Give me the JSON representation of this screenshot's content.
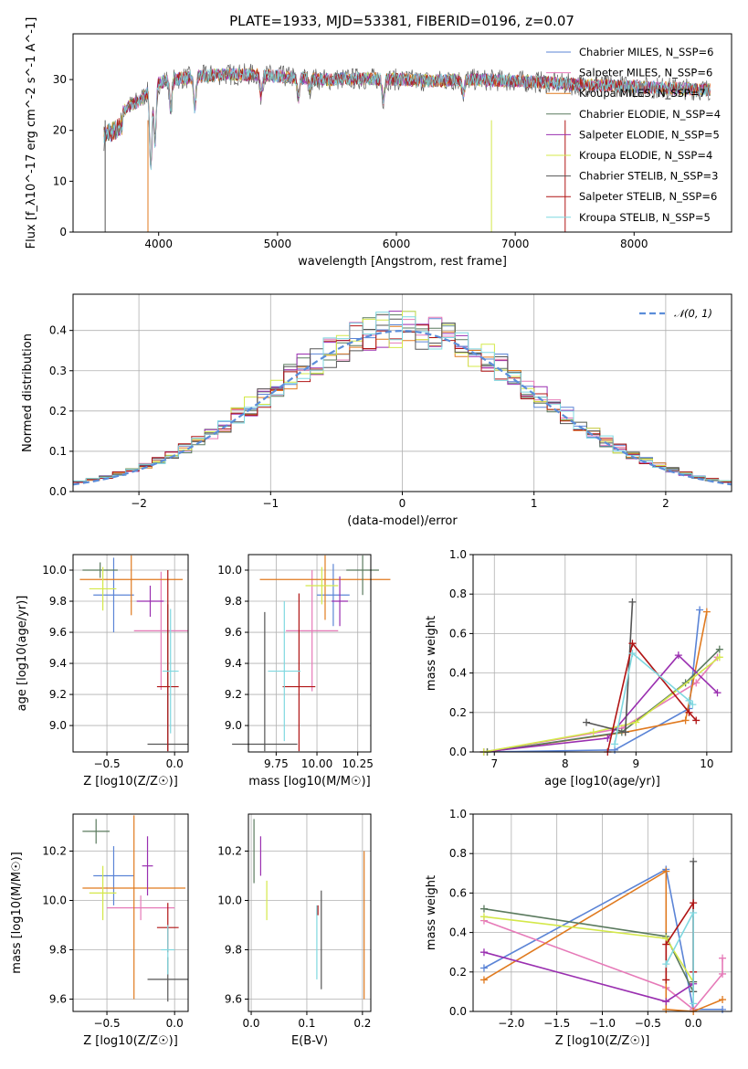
{
  "title": "PLATE=1933, MJD=53381, FIBERID=0196, z=0.07",
  "colors": {
    "chabrier_miles": "#5b84d6",
    "salpeter_miles": "#e67ab8",
    "kroupa_miles": "#e07a1f",
    "chabrier_elodie": "#5a7a5e",
    "salpeter_elodie": "#9a2fb0",
    "kroupa_elodie": "#d4e84a",
    "chabrier_stelib": "#555555",
    "salpeter_stelib": "#b01414",
    "kroupa_stelib": "#7fd8e0",
    "gauss": "#5b8dd9"
  },
  "legend": [
    "Chabrier MILES, N_SSP=6",
    "Salpeter MILES, N_SSP=6",
    "Kroupa MILES, N_SSP=7",
    "Chabrier ELODIE, N_SSP=4",
    "Salpeter ELODIE, N_SSP=5",
    "Kroupa ELODIE, N_SSP=4",
    "Chabrier STELIB, N_SSP=3",
    "Salpeter STELIB, N_SSP=6",
    "Kroupa STELIB, N_SSP=5"
  ],
  "panels": {
    "spectrum": {
      "xlabel": "wavelength [Angstrom, rest frame]",
      "ylabel": "Flux [f_λ10^-17 erg cm^-2 s^-1 A^-1]",
      "xticks": [
        "4000",
        "5000",
        "6000",
        "7000",
        "8000"
      ],
      "yticks": [
        "0",
        "10",
        "20",
        "30"
      ]
    },
    "residuals": {
      "xlabel": "(data-model)/error",
      "ylabel": "Normed distribution",
      "legend": "𝒩(0, 1)",
      "xticks": [
        "−2",
        "−1",
        "0",
        "1",
        "2"
      ],
      "yticks": [
        "0.0",
        "0.1",
        "0.2",
        "0.3",
        "0.4"
      ]
    },
    "age_z": {
      "xlabel": "Z [log10(Z/Z☉)]",
      "ylabel": "age [log10(age/yr)]",
      "xticks": [
        "−0.5",
        "0.0"
      ],
      "yticks": [
        "9.0",
        "9.2",
        "9.4",
        "9.6",
        "9.8",
        "10.0"
      ]
    },
    "age_mass": {
      "xlabel": "mass [log10(M/M☉)]",
      "xticks": [
        "9.75",
        "10.00",
        "10.25"
      ],
      "yticks": [
        "9.0",
        "9.2",
        "9.4",
        "9.6",
        "9.8",
        "10.0"
      ]
    },
    "weight_age": {
      "xlabel": "age [log10(age/yr)]",
      "ylabel": "mass weight",
      "xticks": [
        "7",
        "8",
        "9",
        "10"
      ],
      "yticks": [
        "0.0",
        "0.2",
        "0.4",
        "0.6",
        "0.8",
        "1.0"
      ]
    },
    "mass_z": {
      "xlabel": "Z [log10(Z/Z☉)]",
      "ylabel": "mass [log10(M/M☉)]",
      "xticks": [
        "−0.5",
        "0.0"
      ],
      "yticks": [
        "9.6",
        "9.8",
        "10.0",
        "10.2"
      ]
    },
    "mass_ebv": {
      "xlabel": "E(B-V)",
      "xticks": [
        "0.0",
        "0.1",
        "0.2"
      ],
      "yticks": [
        "9.6",
        "9.8",
        "10.0",
        "10.2"
      ]
    },
    "weight_z": {
      "xlabel": "Z [log10(Z/Z☉)]",
      "ylabel": "mass weight",
      "xticks": [
        "−2.0",
        "−1.5",
        "−1.0",
        "−0.5",
        "0.0"
      ],
      "yticks": [
        "0.0",
        "0.2",
        "0.4",
        "0.6",
        "0.8",
        "1.0"
      ]
    }
  },
  "chart_data": [
    {
      "type": "line",
      "title": "PLATE=1933, MJD=53381, FIBERID=0196, z=0.07",
      "xlabel": "wavelength [Angstrom, rest frame]",
      "ylabel": "Flux [f_λ10^-17 erg cm^-2 s^-1 A^-1]",
      "xlim": [
        3280,
        8820
      ],
      "ylim": [
        0,
        39
      ],
      "continuum": {
        "x": [
          3550,
          3700,
          3850,
          3950,
          4100,
          4300,
          4500,
          4800,
          5100,
          5400,
          5700,
          6000,
          6300,
          6600,
          6900,
          7200,
          7500,
          7800,
          8100,
          8400,
          8600
        ],
        "y": [
          22,
          24,
          26,
          29,
          30,
          30.5,
          31,
          31,
          30.5,
          30,
          30.2,
          30,
          29.7,
          30,
          29.8,
          29.5,
          29,
          28.8,
          28.5,
          28.2,
          28
        ]
      },
      "absorption_lines": [
        {
          "x": 3934,
          "depth": 16
        },
        {
          "x": 3969,
          "depth": 12
        },
        {
          "x": 4102,
          "depth": 6
        },
        {
          "x": 4304,
          "depth": 6
        },
        {
          "x": 4861,
          "depth": 4
        },
        {
          "x": 5175,
          "depth": 4
        },
        {
          "x": 5270,
          "depth": 2
        },
        {
          "x": 5890,
          "depth": 4
        },
        {
          "x": 6563,
          "depth": 3
        }
      ]
    },
    {
      "type": "bar",
      "title": "",
      "xlabel": "(data-model)/error",
      "ylabel": "Normed distribution",
      "xlim": [
        -2.5,
        2.5
      ],
      "ylim": [
        0,
        0.49
      ],
      "gaussian": {
        "name": "𝒩(0, 1)",
        "mu": 0,
        "sigma": 1
      },
      "bin_width": 0.1,
      "note": "one step histogram per model; values follow N(0,1) with scatter"
    },
    {
      "type": "scatter",
      "title": "",
      "xlabel": "Z [log10(Z/Z☉)]",
      "ylabel": "age [log10(age/yr)]",
      "xlim": [
        -0.75,
        0.1
      ],
      "ylim": [
        8.83,
        10.1
      ],
      "points": [
        {
          "s": "chabrier_miles",
          "x": -0.45,
          "y": 9.84,
          "ex": 0.15,
          "ey": 0.24
        },
        {
          "s": "salpeter_miles",
          "x": -0.1,
          "y": 9.61,
          "ex": 0.2,
          "ey": 0.38
        },
        {
          "s": "kroupa_miles",
          "x": -0.32,
          "y": 9.94,
          "ex": 0.38,
          "ey": 0.23
        },
        {
          "s": "chabrier_elodie",
          "x": -0.55,
          "y": 10.0,
          "ex": 0.13,
          "ey": 0.05
        },
        {
          "s": "salpeter_elodie",
          "x": -0.18,
          "y": 9.8,
          "ex": 0.1,
          "ey": 0.1
        },
        {
          "s": "kroupa_elodie",
          "x": -0.53,
          "y": 9.88,
          "ex": 0.1,
          "ey": 0.14
        },
        {
          "s": "chabrier_stelib",
          "x": -0.05,
          "y": 8.88,
          "ex": 0.15,
          "ey": 0.9
        },
        {
          "s": "salpeter_stelib",
          "x": -0.05,
          "y": 9.25,
          "ex": 0.08,
          "ey": 0.75
        },
        {
          "s": "kroupa_stelib",
          "x": -0.03,
          "y": 9.35,
          "ex": 0.06,
          "ey": 0.4
        }
      ]
    },
    {
      "type": "scatter",
      "title": "",
      "xlabel": "mass [log10(M/M☉)]",
      "ylabel": "age [log10(age/yr)]",
      "xlim": [
        9.58,
        10.33
      ],
      "ylim": [
        8.83,
        10.1
      ],
      "points": [
        {
          "s": "chabrier_miles",
          "x": 10.1,
          "y": 9.84,
          "ex": 0.1,
          "ey": 0.2
        },
        {
          "s": "salpeter_miles",
          "x": 9.97,
          "y": 9.61,
          "ex": 0.16,
          "ey": 0.39
        },
        {
          "s": "kroupa_miles",
          "x": 10.05,
          "y": 9.94,
          "ex": 0.4,
          "ey": 0.26
        },
        {
          "s": "chabrier_elodie",
          "x": 10.28,
          "y": 10.0,
          "ex": 0.1,
          "ey": 0.16
        },
        {
          "s": "salpeter_elodie",
          "x": 10.14,
          "y": 9.8,
          "ex": 0.05,
          "ey": 0.16
        },
        {
          "s": "kroupa_elodie",
          "x": 10.03,
          "y": 9.9,
          "ex": 0.1,
          "ey": 0.12
        },
        {
          "s": "chabrier_stelib",
          "x": 9.68,
          "y": 8.88,
          "ex": 0.2,
          "ey": 0.85
        },
        {
          "s": "salpeter_stelib",
          "x": 9.89,
          "y": 9.25,
          "ex": 0.1,
          "ey": 0.6
        },
        {
          "s": "kroupa_stelib",
          "x": 9.8,
          "y": 9.35,
          "ex": 0.1,
          "ey": 0.45
        }
      ]
    },
    {
      "type": "line",
      "title": "",
      "xlabel": "age [log10(age/yr)]",
      "ylabel": "mass weight",
      "xlim": [
        6.7,
        10.35
      ],
      "ylim": [
        0,
        1.0
      ],
      "series": [
        {
          "s": "chabrier_miles",
          "x": [
            6.85,
            8.7,
            9.75,
            9.9
          ],
          "y": [
            0.0,
            0.01,
            0.22,
            0.72
          ]
        },
        {
          "s": "salpeter_miles",
          "x": [
            6.85,
            8.8,
            9.85,
            10.15
          ],
          "y": [
            0.0,
            0.12,
            0.35,
            0.48
          ]
        },
        {
          "s": "kroupa_miles",
          "x": [
            6.9,
            8.85,
            9.7,
            10.0
          ],
          "y": [
            0.0,
            0.1,
            0.16,
            0.71
          ]
        },
        {
          "s": "chabrier_elodie",
          "x": [
            6.9,
            8.8,
            9.7,
            10.18
          ],
          "y": [
            0.0,
            0.1,
            0.35,
            0.52
          ]
        },
        {
          "s": "salpeter_elodie",
          "x": [
            6.85,
            8.6,
            9.6,
            10.15
          ],
          "y": [
            0.0,
            0.07,
            0.49,
            0.3
          ]
        },
        {
          "s": "kroupa_elodie",
          "x": [
            6.85,
            8.4,
            9.0,
            10.18
          ],
          "y": [
            0.0,
            0.1,
            0.15,
            0.48
          ]
        },
        {
          "s": "chabrier_stelib",
          "x": [
            8.3,
            8.85,
            8.95
          ],
          "y": [
            0.15,
            0.1,
            0.76
          ]
        },
        {
          "s": "salpeter_stelib",
          "x": [
            8.6,
            8.95,
            9.75,
            9.85
          ],
          "y": [
            0.0,
            0.55,
            0.2,
            0.16
          ]
        },
        {
          "s": "kroupa_stelib",
          "x": [
            8.7,
            8.95,
            9.75,
            9.8
          ],
          "y": [
            0.04,
            0.5,
            0.26,
            0.24
          ]
        }
      ]
    },
    {
      "type": "scatter",
      "title": "",
      "xlabel": "Z [log10(Z/Z☉)]",
      "ylabel": "mass [log10(M/M☉)]",
      "xlim": [
        -0.75,
        0.1
      ],
      "ylim": [
        9.55,
        10.35
      ],
      "points": [
        {
          "s": "chabrier_miles",
          "x": -0.45,
          "y": 10.1,
          "ex": 0.15,
          "ey": 0.12
        },
        {
          "s": "salpeter_miles",
          "x": -0.25,
          "y": 9.97,
          "ex": 0.25,
          "ey": 0.05
        },
        {
          "s": "kroupa_miles",
          "x": -0.3,
          "y": 10.05,
          "ex": 0.38,
          "ey": 0.45
        },
        {
          "s": "chabrier_elodie",
          "x": -0.58,
          "y": 10.28,
          "ex": 0.1,
          "ey": 0.05
        },
        {
          "s": "salpeter_elodie",
          "x": -0.2,
          "y": 10.14,
          "ex": 0.04,
          "ey": 0.12
        },
        {
          "s": "kroupa_elodie",
          "x": -0.53,
          "y": 10.03,
          "ex": 0.1,
          "ey": 0.11
        },
        {
          "s": "chabrier_stelib",
          "x": -0.05,
          "y": 9.68,
          "ex": 0.15,
          "ey": 0.09
        },
        {
          "s": "salpeter_stelib",
          "x": -0.05,
          "y": 9.89,
          "ex": 0.08,
          "ey": 0.1
        },
        {
          "s": "kroupa_stelib",
          "x": -0.05,
          "y": 9.8,
          "ex": 0.05,
          "ey": 0.1
        }
      ]
    },
    {
      "type": "scatter",
      "title": "",
      "xlabel": "E(B-V)",
      "ylabel": "mass [log10(M/M☉)]",
      "xlim": [
        -0.005,
        0.215
      ],
      "ylim": [
        9.55,
        10.35
      ],
      "points": [
        {
          "s": "chabrier_elodie",
          "x": 0.005,
          "y": 10.2,
          "ex": 0,
          "ey": 0.13
        },
        {
          "s": "salpeter_elodie",
          "x": 0.017,
          "y": 10.18,
          "ex": 0,
          "ey": 0.08
        },
        {
          "s": "kroupa_elodie",
          "x": 0.028,
          "y": 10.0,
          "ex": 0,
          "ey": 0.08
        },
        {
          "s": "kroupa_stelib",
          "x": 0.118,
          "y": 9.83,
          "ex": 0,
          "ey": 0.15
        },
        {
          "s": "salpeter_stelib",
          "x": 0.12,
          "y": 9.96,
          "ex": 0,
          "ey": 0.02
        },
        {
          "s": "chabrier_stelib",
          "x": 0.126,
          "y": 9.84,
          "ex": 0,
          "ey": 0.2
        },
        {
          "s": "kroupa_miles",
          "x": 0.203,
          "y": 9.9,
          "ex": 0,
          "ey": 0.3
        }
      ]
    },
    {
      "type": "line",
      "title": "",
      "xlabel": "Z [log10(Z/Z☉)]",
      "ylabel": "mass weight",
      "xlim": [
        -2.42,
        0.42
      ],
      "ylim": [
        0,
        1.0
      ],
      "series": [
        {
          "s": "chabrier_miles",
          "x": [
            -2.3,
            -0.3,
            0.0,
            0.32
          ],
          "y": [
            0.22,
            0.72,
            0.01,
            0.01
          ]
        },
        {
          "s": "salpeter_miles",
          "x": [
            -2.3,
            -0.3,
            0.0,
            0.32,
            0.32
          ],
          "y": [
            0.46,
            0.12,
            0.01,
            0.19,
            0.27
          ]
        },
        {
          "s": "kroupa_miles",
          "x": [
            -2.3,
            -0.3,
            -0.3,
            0.0,
            0.32
          ],
          "y": [
            0.16,
            0.71,
            0.01,
            0.0,
            0.06
          ]
        },
        {
          "s": "chabrier_elodie",
          "x": [
            -2.3,
            -0.3,
            0.0
          ],
          "y": [
            0.52,
            0.38,
            0.1
          ]
        },
        {
          "s": "salpeter_elodie",
          "x": [
            -2.3,
            -0.3,
            0.0
          ],
          "y": [
            0.3,
            0.05,
            0.14
          ]
        },
        {
          "s": "kroupa_elodie",
          "x": [
            -2.3,
            -0.3,
            0.0
          ],
          "y": [
            0.48,
            0.37,
            0.15
          ]
        },
        {
          "s": "chabrier_stelib",
          "x": [
            0.0,
            0.0,
            0.0
          ],
          "y": [
            0.1,
            0.15,
            0.76
          ]
        },
        {
          "s": "salpeter_stelib",
          "x": [
            -0.3,
            -0.3,
            0.0,
            0.0
          ],
          "y": [
            0.16,
            0.34,
            0.55,
            0.2
          ]
        },
        {
          "s": "kroupa_stelib",
          "x": [
            -0.3,
            0.0,
            0.0
          ],
          "y": [
            0.24,
            0.5,
            0.04
          ]
        }
      ]
    }
  ]
}
